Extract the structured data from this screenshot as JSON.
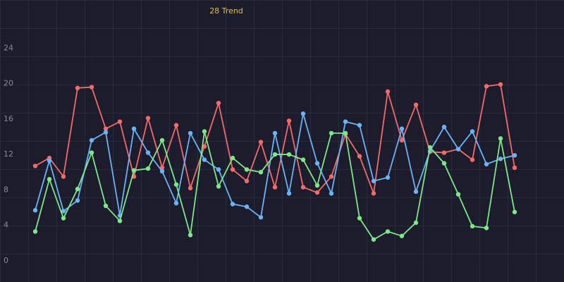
{
  "chart_data": {
    "type": "line",
    "title": "28 Trend",
    "categories": [
      null,
      null,
      null,
      null,
      null,
      null,
      null,
      null,
      null,
      null,
      null,
      null,
      null,
      null,
      null,
      null,
      null,
      null,
      null,
      null,
      null,
      null,
      null,
      null,
      null,
      null,
      null,
      null,
      null,
      null,
      null,
      null,
      null,
      null,
      null
    ],
    "series": [
      {
        "color": "#f26b6b",
        "values": [
          10.7,
          11.6,
          9.5,
          19.5,
          19.6,
          14.9,
          15.7,
          9.5,
          16.1,
          10.5,
          15.3,
          8.2,
          12.9,
          17.8,
          10.3,
          9.0,
          13.4,
          8.3,
          15.8,
          8.3,
          7.7,
          9.5,
          14.3,
          11.8,
          7.6,
          19.1,
          13.6,
          17.6,
          12.3,
          12.2,
          12.6,
          11.4,
          19.7,
          19.9,
          10.5
        ]
      },
      {
        "color": "#6ab4f5",
        "values": [
          5.7,
          11.3,
          5.6,
          6.8,
          13.6,
          14.5,
          5.1,
          14.9,
          12.2,
          10.1,
          6.5,
          14.4,
          11.4,
          10.3,
          6.4,
          6.1,
          4.9,
          14.4,
          7.6,
          16.6,
          11.0,
          7.6,
          15.7,
          15.3,
          9.0,
          9.4,
          14.9,
          7.8,
          12.4,
          15.1,
          12.6,
          14.6,
          10.9,
          11.5,
          11.9
        ]
      },
      {
        "color": "#7ee787",
        "values": [
          3.3,
          9.2,
          4.8,
          8.1,
          12.2,
          6.2,
          4.5,
          10.2,
          10.4,
          13.6,
          8.6,
          2.9,
          14.6,
          8.4,
          11.6,
          10.3,
          10.0,
          12.0,
          12.0,
          11.4,
          8.5,
          14.4,
          14.4,
          4.8,
          2.4,
          3.3,
          2.8,
          4.3,
          12.8,
          11.0,
          7.5,
          3.9,
          3.7,
          13.8,
          5.5
        ]
      }
    ],
    "ylim": [
      -2,
      28
    ],
    "yticks": [
      0,
      4,
      8,
      12,
      16,
      20,
      24
    ]
  }
}
